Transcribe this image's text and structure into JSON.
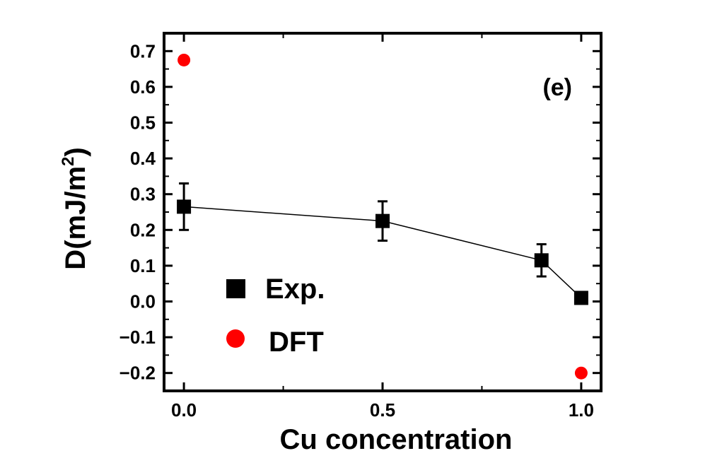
{
  "chart_data": {
    "type": "scatter",
    "xlabel": "Cu concentration",
    "ylabel": "D(mJ/m2)",
    "ylabel_main": "D(mJ/m",
    "ylabel_sup": "2",
    "ylabel_tail": ")",
    "panel_label": "(e)",
    "xlim": [
      -0.05,
      1.05
    ],
    "ylim": [
      -0.25,
      0.75
    ],
    "x_ticks": [
      0.0,
      0.5,
      1.0
    ],
    "x_tick_labels": [
      "0.0",
      "0.5",
      "1.0"
    ],
    "y_ticks": [
      0.7,
      0.6,
      0.5,
      0.4,
      0.3,
      0.2,
      0.1,
      0.0,
      -0.1,
      -0.2
    ],
    "y_tick_labels": [
      "0.7",
      "0.6",
      "0.5",
      "0.4",
      "0.3",
      "0.2",
      "0.1",
      "0.0",
      "−0.1",
      "−0.2"
    ],
    "grid": false,
    "legend_position": "bottom-left",
    "series": [
      {
        "name": "Exp.",
        "marker": "square",
        "color": "#000000",
        "connected": true,
        "x": [
          0.0,
          0.5,
          0.9,
          1.0
        ],
        "y": [
          0.265,
          0.225,
          0.115,
          0.01
        ],
        "yerr": [
          0.065,
          0.055,
          0.045,
          0.0
        ]
      },
      {
        "name": "DFT",
        "marker": "circle",
        "color": "#ff0000",
        "connected": false,
        "x": [
          0.0,
          1.0
        ],
        "y": [
          0.675,
          -0.2
        ]
      }
    ]
  }
}
